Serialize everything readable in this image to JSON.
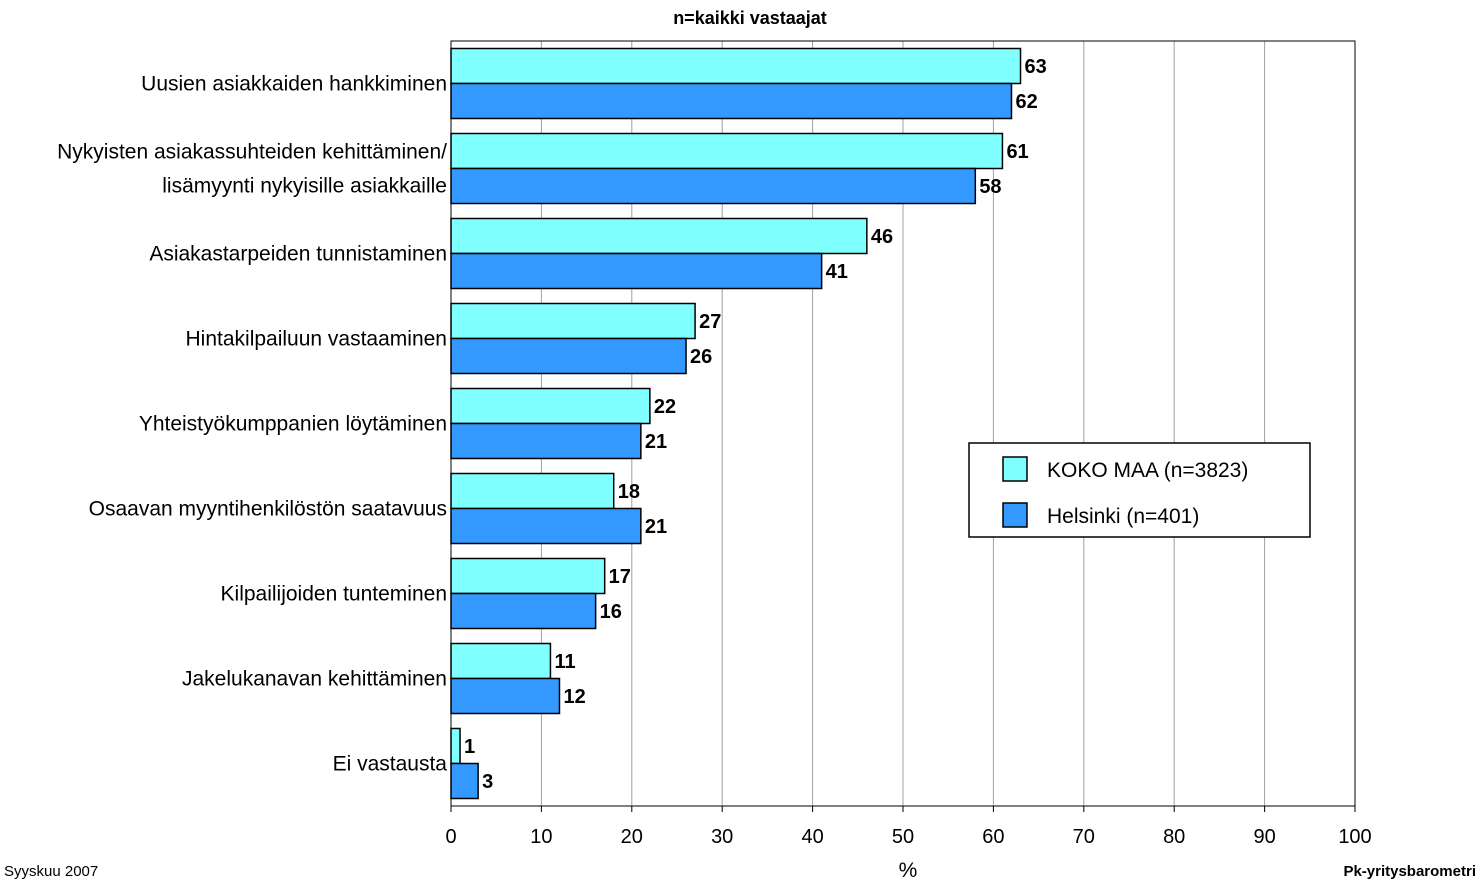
{
  "chart_data": {
    "type": "bar",
    "orientation": "horizontal",
    "title": "n=kaikki vastaajat",
    "xlabel": "%",
    "xlim": [
      0,
      100
    ],
    "xticks": [
      0,
      10,
      20,
      30,
      40,
      50,
      60,
      70,
      80,
      90,
      100
    ],
    "grid": true,
    "legend_position": "right",
    "categories": [
      [
        "Uusien asiakkaiden hankkiminen"
      ],
      [
        "Nykyisten asiakassuhteiden kehittäminen/",
        "lisämyynti nykyisille asiakkaille"
      ],
      [
        "Asiakastarpeiden tunnistaminen"
      ],
      [
        "Hintakilpailuun vastaaminen"
      ],
      [
        "Yhteistyökumppanien löytäminen"
      ],
      [
        "Osaavan myyntihenkilöstön saatavuus"
      ],
      [
        "Kilpailijoiden tunteminen"
      ],
      [
        "Jakelukanavan kehittäminen"
      ],
      [
        "Ei vastausta"
      ]
    ],
    "series": [
      {
        "name": "KOKO MAA (n=3823)",
        "color": "#80ffff",
        "values": [
          63,
          61,
          46,
          27,
          22,
          18,
          17,
          11,
          1
        ]
      },
      {
        "name": "Helsinki (n=401)",
        "color": "#3399ff",
        "values": [
          62,
          58,
          41,
          26,
          21,
          21,
          16,
          12,
          3
        ]
      }
    ]
  },
  "footer": {
    "left": "Syyskuu 2007",
    "right": "Pk-yritysbarometri"
  }
}
